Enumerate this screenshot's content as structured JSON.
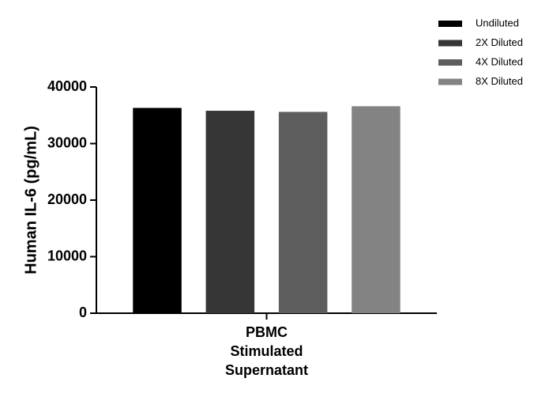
{
  "chart_data": {
    "type": "bar",
    "y_label": "Human IL-6 (pg/mL)",
    "categories": [
      "PBMC Stimulated Supernatant"
    ],
    "series": [
      {
        "name": "Undiluted",
        "color": "#000000",
        "values": [
          36300
        ]
      },
      {
        "name": "2X Diluted",
        "color": "#363636",
        "values": [
          35800
        ]
      },
      {
        "name": "4X Diluted",
        "color": "#5e5e5e",
        "values": [
          35600
        ]
      },
      {
        "name": "8X Diluted",
        "color": "#838383",
        "values": [
          36600
        ]
      }
    ],
    "ylim": [
      0,
      40000
    ],
    "yticks": [
      0,
      10000,
      20000,
      30000,
      40000
    ],
    "grid": false,
    "legend": "top-right"
  }
}
